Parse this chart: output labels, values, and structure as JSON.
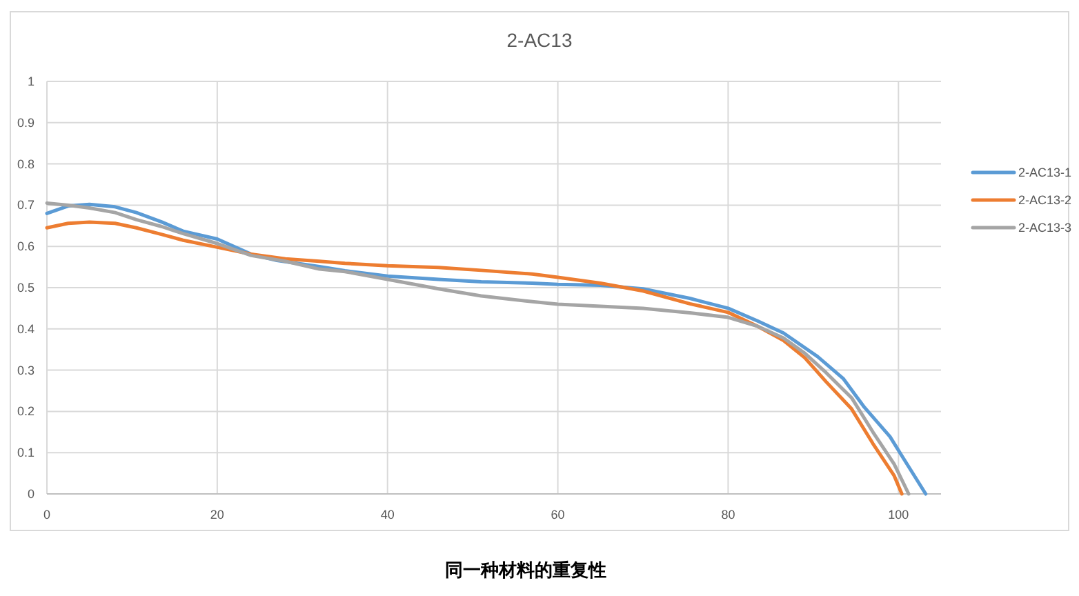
{
  "chart_data": {
    "type": "line",
    "title": "2-AC13",
    "annotations": [
      "同一种材料的重复性"
    ],
    "xlim": [
      0,
      105
    ],
    "xticks": [
      0,
      20,
      40,
      60,
      80,
      100
    ],
    "ylim": [
      0,
      1
    ],
    "yticks": [
      0,
      0.1,
      0.2,
      0.3,
      0.4,
      0.5,
      0.6,
      0.7,
      0.8,
      0.9,
      1
    ],
    "grid": true,
    "legend": "right",
    "line_style": "solid",
    "series": [
      {
        "name": "2-AC13-1",
        "color": "#5b9bd5",
        "x": [
          0,
          2.5,
          5,
          8,
          10.5,
          13.5,
          16,
          20,
          24,
          27,
          32,
          35,
          40,
          46,
          51,
          57,
          60,
          65,
          70,
          75.5,
          80,
          83.5,
          86.5,
          90.5,
          93.5,
          96,
          99,
          100.5,
          103.2
        ],
        "values": [
          0.68,
          0.698,
          0.702,
          0.696,
          0.682,
          0.659,
          0.637,
          0.618,
          0.581,
          0.566,
          0.551,
          0.541,
          0.528,
          0.52,
          0.514,
          0.511,
          0.508,
          0.506,
          0.497,
          0.474,
          0.45,
          0.419,
          0.39,
          0.333,
          0.28,
          0.21,
          0.139,
          0.089,
          0
        ]
      },
      {
        "name": "2-AC13-2",
        "color": "#ed7d31",
        "x": [
          0,
          2.5,
          5,
          8,
          10.5,
          13.5,
          16,
          20,
          24,
          28,
          32,
          35,
          40,
          46,
          51,
          57,
          60,
          65,
          70,
          75.5,
          80,
          83.5,
          86.5,
          89,
          91.5,
          94.5,
          97,
          99.5,
          100.4
        ],
        "values": [
          0.645,
          0.656,
          0.659,
          0.656,
          0.645,
          0.629,
          0.615,
          0.598,
          0.581,
          0.57,
          0.564,
          0.559,
          0.553,
          0.549,
          0.542,
          0.533,
          0.525,
          0.511,
          0.492,
          0.461,
          0.44,
          0.406,
          0.372,
          0.33,
          0.272,
          0.206,
          0.122,
          0.044,
          0
        ]
      },
      {
        "name": "2-AC13-3",
        "color": "#a5a5a5",
        "x": [
          0,
          2.5,
          5,
          8,
          10.5,
          13.5,
          16,
          20,
          24,
          28,
          32,
          35,
          40,
          46,
          51,
          57,
          60,
          65,
          70,
          75.5,
          80,
          83.5,
          86.5,
          89,
          91.5,
          94.5,
          97,
          99.5,
          101.2
        ],
        "values": [
          0.705,
          0.7,
          0.693,
          0.682,
          0.665,
          0.648,
          0.631,
          0.607,
          0.578,
          0.564,
          0.545,
          0.539,
          0.52,
          0.497,
          0.48,
          0.466,
          0.46,
          0.455,
          0.45,
          0.439,
          0.428,
          0.406,
          0.378,
          0.341,
          0.294,
          0.233,
          0.15,
          0.072,
          0
        ]
      }
    ]
  }
}
